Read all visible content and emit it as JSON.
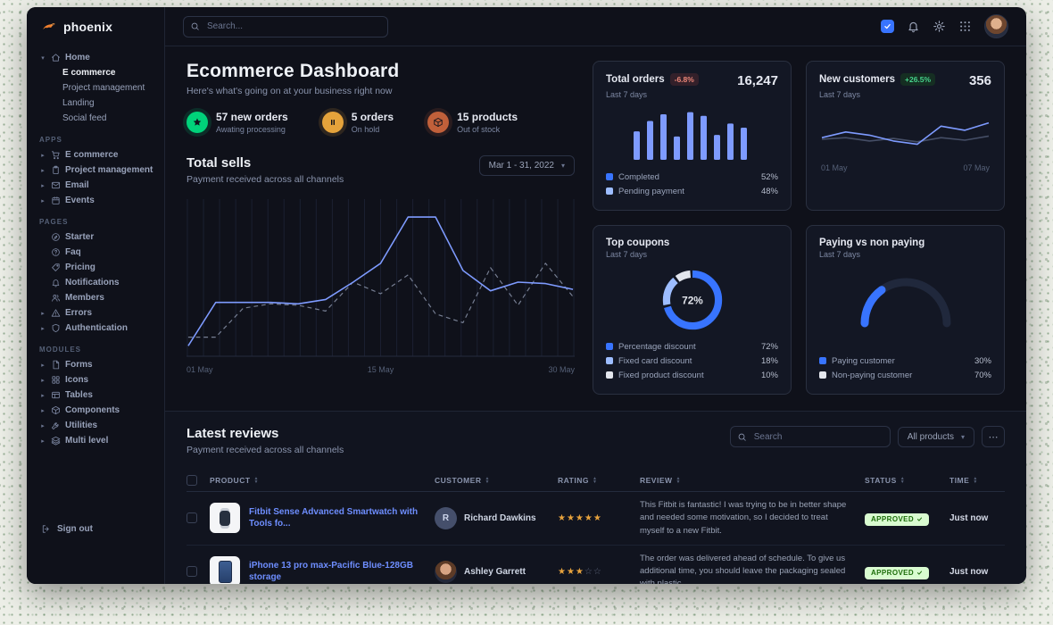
{
  "app": {
    "name": "phoenix"
  },
  "sidebar": {
    "logo": "phoenix",
    "groups": [
      {
        "items": [
          {
            "label": "Home",
            "icon": "home",
            "chevron": "down",
            "children": [
              {
                "label": "E commerce",
                "active": true
              },
              {
                "label": "Project management"
              },
              {
                "label": "Landing"
              },
              {
                "label": "Social feed"
              }
            ]
          }
        ]
      },
      {
        "section": "APPS",
        "items": [
          {
            "label": "E commerce",
            "icon": "cart",
            "chevron": "right"
          },
          {
            "label": "Project management",
            "icon": "clipboard",
            "chevron": "right"
          },
          {
            "label": "Email",
            "icon": "mail",
            "chevron": "right"
          },
          {
            "label": "Events",
            "icon": "calendar",
            "chevron": "right"
          }
        ]
      },
      {
        "section": "PAGES",
        "items": [
          {
            "label": "Starter",
            "icon": "compass"
          },
          {
            "label": "Faq",
            "icon": "help"
          },
          {
            "label": "Pricing",
            "icon": "tag"
          },
          {
            "label": "Notifications",
            "icon": "bell"
          },
          {
            "label": "Members",
            "icon": "users"
          },
          {
            "label": "Errors",
            "icon": "alert",
            "chevron": "right"
          },
          {
            "label": "Authentication",
            "icon": "shield",
            "chevron": "right"
          }
        ]
      },
      {
        "section": "MODULES",
        "items": [
          {
            "label": "Forms",
            "icon": "file",
            "chevron": "right"
          },
          {
            "label": "Icons",
            "icon": "grid",
            "chevron": "right"
          },
          {
            "label": "Tables",
            "icon": "table",
            "chevron": "right"
          },
          {
            "label": "Components",
            "icon": "box",
            "chevron": "right"
          },
          {
            "label": "Utilities",
            "icon": "tool",
            "chevron": "right"
          },
          {
            "label": "Multi level",
            "icon": "layers",
            "chevron": "right"
          }
        ]
      }
    ],
    "signout": {
      "label": "Sign out",
      "icon": "logout"
    }
  },
  "topbar": {
    "search_placeholder": "Search..."
  },
  "hero": {
    "title": "Ecommerce Dashboard",
    "subtitle": "Here's what's going on at your business right now",
    "stats": [
      {
        "icon": "star",
        "color": "#00d27a",
        "value": "57 new orders",
        "caption": "Awating processing"
      },
      {
        "icon": "pause",
        "color": "#e5a33b",
        "value": "5 orders",
        "caption": "On hold"
      },
      {
        "icon": "box",
        "color": "#c1603a",
        "value": "15 products",
        "caption": "Out of stock"
      }
    ]
  },
  "sells": {
    "title": "Total sells",
    "subtitle": "Payment received across all channels",
    "date_range": "Mar 1 - 31, 2022"
  },
  "cards": {
    "total_orders": {
      "title": "Total orders",
      "badge": "-6.8%",
      "period": "Last 7 days",
      "value": "16,247",
      "legend": [
        {
          "label": "Completed",
          "value": "52%",
          "color": "#3874ff"
        },
        {
          "label": "Pending payment",
          "value": "48%",
          "color": "#9dbdff"
        }
      ]
    },
    "new_customers": {
      "title": "New customers",
      "badge": "+26.5%",
      "period": "Last 7 days",
      "value": "356"
    },
    "top_coupons": {
      "title": "Top coupons",
      "period": "Last 7 days",
      "legend": [
        {
          "label": "Percentage discount",
          "value": "72%",
          "color": "#3874ff"
        },
        {
          "label": "Fixed card discount",
          "value": "18%",
          "color": "#9dbdff"
        },
        {
          "label": "Fixed product discount",
          "value": "10%",
          "color": "#e3e6ed"
        }
      ]
    },
    "paying": {
      "title": "Paying vs non paying",
      "period": "Last 7 days",
      "legend": [
        {
          "label": "Paying customer",
          "value": "30%",
          "color": "#3874ff"
        },
        {
          "label": "Non-paying customer",
          "value": "70%",
          "color": "#e3e6ed"
        }
      ]
    }
  },
  "chart_data": [
    {
      "id": "total_sells",
      "type": "line",
      "title": "Total sells",
      "x_ticks": [
        "01 May",
        "15 May",
        "30 May"
      ],
      "ylim": [
        0,
        100
      ],
      "grid": "vertical",
      "series": [
        {
          "name": "current period",
          "style": "solid",
          "color": "#7e9bff",
          "values": [
            6,
            36,
            36,
            36,
            35,
            38,
            50,
            63,
            95,
            95,
            58,
            44,
            50,
            49,
            45
          ]
        },
        {
          "name": "previous period",
          "style": "dashed",
          "color": "#8a93a9",
          "values": [
            12,
            12,
            32,
            35,
            34,
            30,
            50,
            42,
            55,
            28,
            22,
            60,
            34,
            63,
            40
          ]
        }
      ]
    },
    {
      "id": "total_orders",
      "type": "bar",
      "title": "Total orders",
      "color": "#7e9bff",
      "ylim": [
        0,
        100
      ],
      "values": [
        55,
        75,
        88,
        45,
        92,
        85,
        48,
        70,
        62
      ]
    },
    {
      "id": "new_customers",
      "type": "line",
      "title": "New customers",
      "x_ticks": [
        "01 May",
        "07 May"
      ],
      "ylim": [
        0,
        100
      ],
      "series": [
        {
          "name": "current period",
          "color": "#7e9bff",
          "values": [
            30,
            44,
            36,
            22,
            14,
            58,
            48,
            66
          ]
        },
        {
          "name": "previous period",
          "color": "#454e66",
          "values": [
            26,
            30,
            22,
            28,
            20,
            30,
            24,
            34
          ]
        }
      ]
    },
    {
      "id": "top_coupons",
      "type": "pie",
      "title": "Top coupons",
      "labels": [
        "Percentage discount",
        "Fixed card discount",
        "Fixed product discount"
      ],
      "values": [
        72,
        18,
        10
      ],
      "colors": [
        "#3874ff",
        "#9dbdff",
        "#e3e6ed"
      ],
      "center_label": "72%"
    },
    {
      "id": "paying",
      "type": "gauge",
      "title": "Paying vs non paying",
      "labels": [
        "Paying customer",
        "Non-paying customer"
      ],
      "values": [
        30,
        70
      ],
      "colors": [
        "#3874ff",
        "#e3e6ed"
      ]
    }
  ],
  "reviews": {
    "title": "Latest reviews",
    "subtitle": "Payment received across all channels",
    "search_placeholder": "Search",
    "filter_label": "All products",
    "more_label": "⋯",
    "columns": [
      "PRODUCT",
      "CUSTOMER",
      "RATING",
      "REVIEW",
      "STATUS",
      "TIME"
    ],
    "rows": [
      {
        "product": "Fitbit Sense Advanced Smartwatch with Tools fo...",
        "thumb": "watch",
        "customer": "Richard Dawkins",
        "avatar_initial": "R",
        "rating": 5,
        "review": "This Fitbit is fantastic! I was trying to be in better shape and needed some motivation, so I decided to treat myself to a new Fitbit.",
        "status": "APPROVED",
        "time": "Just now"
      },
      {
        "product": "iPhone 13 pro max-Pacific Blue-128GB storage",
        "thumb": "phone",
        "customer": "Ashley Garrett",
        "avatar_initial": "",
        "rating": 3,
        "review": "The order was delivered ahead of schedule. To give us additional time, you should leave the packaging sealed with plastic.",
        "status": "APPROVED",
        "time": "Just now"
      }
    ]
  }
}
